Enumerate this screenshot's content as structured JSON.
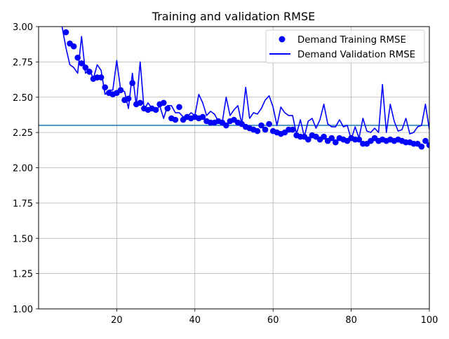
{
  "chart_data": {
    "type": "line",
    "title": "Training and validation RMSE",
    "xlabel": "",
    "ylabel": "",
    "xlim": [
      0,
      100
    ],
    "ylim": [
      1.0,
      3.0
    ],
    "xticks": [
      20,
      40,
      60,
      80,
      100
    ],
    "xtick_labels": [
      "20",
      "40",
      "60",
      "80",
      "100"
    ],
    "yticks": [
      1.0,
      1.25,
      1.5,
      1.75,
      2.0,
      2.25,
      2.5,
      2.75,
      3.0
    ],
    "ytick_labels": [
      "1.00",
      "1.25",
      "1.50",
      "1.75",
      "2.00",
      "2.25",
      "2.50",
      "2.75",
      "3.00"
    ],
    "grid": true,
    "legend_position": "top-right",
    "reference_line": {
      "y": 2.3,
      "color": "#1f77b4"
    },
    "series": [
      {
        "name": "Demand Training RMSE",
        "kind": "marker",
        "color": "#0000ff",
        "x": [
          5,
          6,
          7,
          8,
          9,
          10,
          11,
          12,
          13,
          14,
          15,
          16,
          17,
          18,
          19,
          20,
          21,
          22,
          23,
          24,
          25,
          26,
          27,
          28,
          29,
          30,
          31,
          32,
          33,
          34,
          35,
          36,
          37,
          38,
          39,
          40,
          41,
          42,
          43,
          44,
          45,
          46,
          47,
          48,
          49,
          50,
          51,
          52,
          53,
          54,
          55,
          56,
          57,
          58,
          59,
          60,
          61,
          62,
          63,
          64,
          65,
          66,
          67,
          68,
          69,
          70,
          71,
          72,
          73,
          74,
          75,
          76,
          77,
          78,
          79,
          80,
          81,
          82,
          83,
          84,
          85,
          86,
          87,
          88,
          89,
          90,
          91,
          92,
          93,
          94,
          95,
          96,
          97,
          98,
          99,
          100
        ],
        "y": [
          3.08,
          3.02,
          2.96,
          2.88,
          2.86,
          2.78,
          2.74,
          2.71,
          2.68,
          2.63,
          2.64,
          2.64,
          2.57,
          2.53,
          2.52,
          2.53,
          2.55,
          2.48,
          2.49,
          2.6,
          2.45,
          2.46,
          2.42,
          2.41,
          2.42,
          2.41,
          2.45,
          2.46,
          2.42,
          2.35,
          2.34,
          2.43,
          2.34,
          2.36,
          2.35,
          2.36,
          2.35,
          2.36,
          2.33,
          2.32,
          2.32,
          2.33,
          2.32,
          2.3,
          2.33,
          2.34,
          2.32,
          2.31,
          2.29,
          2.28,
          2.27,
          2.26,
          2.3,
          2.27,
          2.31,
          2.26,
          2.25,
          2.24,
          2.25,
          2.27,
          2.27,
          2.23,
          2.22,
          2.22,
          2.2,
          2.23,
          2.22,
          2.2,
          2.22,
          2.19,
          2.21,
          2.18,
          2.21,
          2.2,
          2.19,
          2.21,
          2.2,
          2.2,
          2.17,
          2.17,
          2.19,
          2.21,
          2.19,
          2.2,
          2.19,
          2.2,
          2.19,
          2.2,
          2.19,
          2.18,
          2.18,
          2.17,
          2.17,
          2.15,
          2.19,
          2.16
        ]
      },
      {
        "name": "Demand Validation RMSE",
        "kind": "line",
        "color": "#0000ff",
        "x": [
          5,
          6,
          7,
          8,
          9,
          10,
          11,
          12,
          13,
          14,
          15,
          16,
          17,
          18,
          19,
          20,
          21,
          22,
          23,
          24,
          25,
          26,
          27,
          28,
          29,
          30,
          31,
          32,
          33,
          34,
          35,
          36,
          37,
          38,
          39,
          40,
          41,
          42,
          43,
          44,
          45,
          46,
          47,
          48,
          49,
          50,
          51,
          52,
          53,
          54,
          55,
          56,
          57,
          58,
          59,
          60,
          61,
          62,
          63,
          64,
          65,
          66,
          67,
          68,
          69,
          70,
          71,
          72,
          73,
          74,
          75,
          76,
          77,
          78,
          79,
          80,
          81,
          82,
          83,
          84,
          85,
          86,
          87,
          88,
          89,
          90,
          91,
          92,
          93,
          94,
          95,
          96,
          97,
          98,
          99,
          100
        ],
        "y": [
          3.05,
          3.0,
          2.85,
          2.73,
          2.71,
          2.67,
          2.93,
          2.67,
          2.7,
          2.63,
          2.73,
          2.69,
          2.52,
          2.55,
          2.55,
          2.76,
          2.55,
          2.54,
          2.42,
          2.67,
          2.44,
          2.75,
          2.41,
          2.46,
          2.42,
          2.4,
          2.44,
          2.35,
          2.44,
          2.44,
          2.39,
          2.39,
          2.36,
          2.36,
          2.39,
          2.37,
          2.52,
          2.46,
          2.37,
          2.4,
          2.38,
          2.33,
          2.32,
          2.5,
          2.37,
          2.41,
          2.44,
          2.31,
          2.57,
          2.35,
          2.39,
          2.38,
          2.42,
          2.48,
          2.51,
          2.43,
          2.3,
          2.43,
          2.39,
          2.37,
          2.37,
          2.24,
          2.34,
          2.22,
          2.33,
          2.35,
          2.28,
          2.34,
          2.45,
          2.31,
          2.29,
          2.29,
          2.34,
          2.29,
          2.3,
          2.2,
          2.29,
          2.21,
          2.35,
          2.26,
          2.25,
          2.28,
          2.25,
          2.59,
          2.25,
          2.45,
          2.33,
          2.26,
          2.27,
          2.35,
          2.24,
          2.25,
          2.29,
          2.3,
          2.45,
          2.27
        ]
      }
    ]
  }
}
